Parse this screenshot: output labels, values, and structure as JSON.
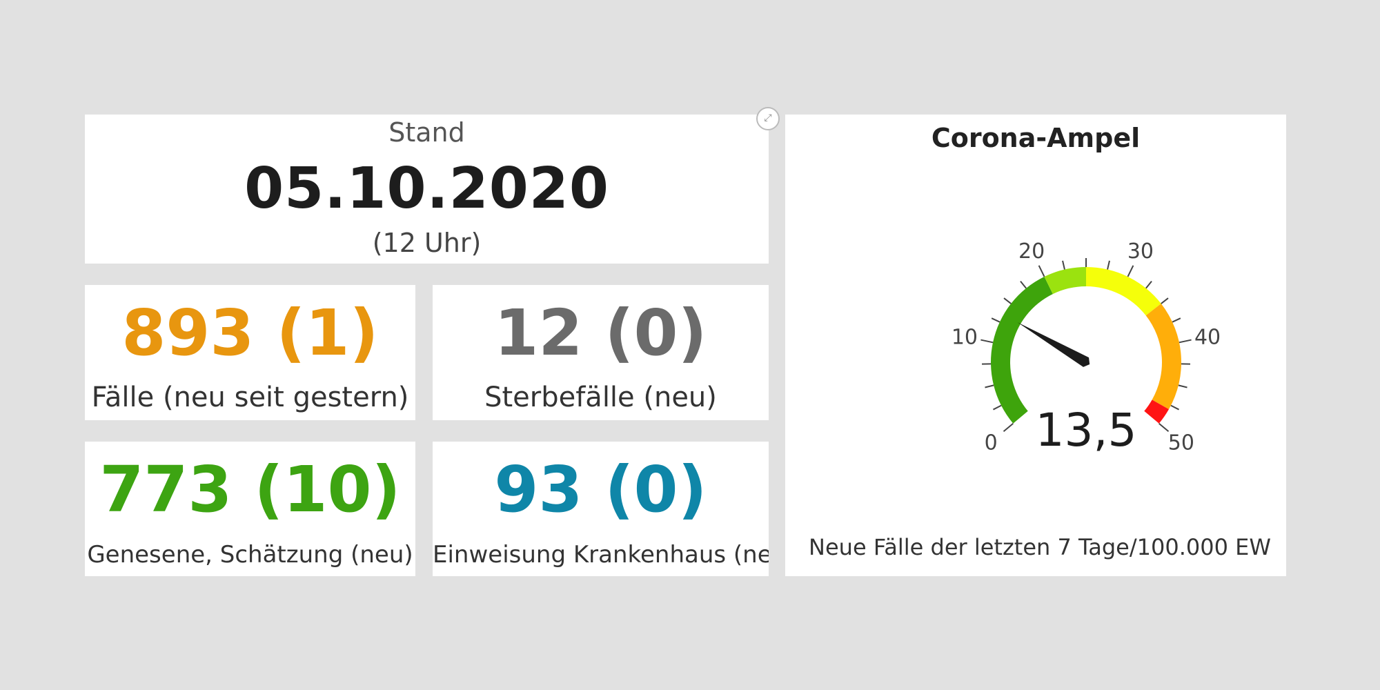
{
  "stand": {
    "label": "Stand",
    "date": "05.10.2020",
    "time": "(12 Uhr)"
  },
  "stats": {
    "cases": {
      "value": "893 (1)",
      "label": "Fälle (neu seit gestern)",
      "color": "#e8960f"
    },
    "deaths": {
      "value": "12 (0)",
      "label": "Sterbefälle (neu)",
      "color": "#6b6b6b"
    },
    "recovered": {
      "value": "773 (10)",
      "label": "Genesene, Schätzung (neu)",
      "color": "#3da412"
    },
    "hospital": {
      "value": "93 (0)",
      "label": "Einweisung Krankenhaus (neu)",
      "color": "#0f86a8"
    }
  },
  "gauge": {
    "title": "Corona-Ampel",
    "value": 13.5,
    "value_text": "13,5",
    "min": 0,
    "max": 50,
    "tick_labels": [
      "0",
      "10",
      "20",
      "30",
      "40",
      "50"
    ],
    "bands": [
      {
        "from": 0,
        "to": 20,
        "color": "#3ea40c"
      },
      {
        "from": 20,
        "to": 25,
        "color": "#9be20f"
      },
      {
        "from": 25,
        "to": 35,
        "color": "#f5ff0a"
      },
      {
        "from": 35,
        "to": 48,
        "color": "#ffae0a"
      },
      {
        "from": 48,
        "to": 50,
        "color": "#ff1414"
      }
    ],
    "caption": "Neue Fälle der letzten 7 Tage/100.000 EW",
    "expand_icon": "expand-arrows-icon"
  }
}
